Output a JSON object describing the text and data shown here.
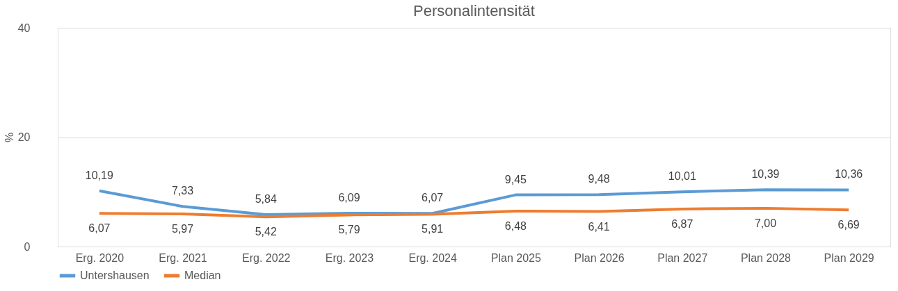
{
  "chart_data": {
    "type": "line",
    "title": "Personalintensität",
    "ylabel": "%",
    "categories": [
      "Erg. 2020",
      "Erg. 2021",
      "Erg. 2022",
      "Erg. 2023",
      "Erg. 2024",
      "Plan 2025",
      "Plan 2026",
      "Plan 2027",
      "Plan 2028",
      "Plan 2029"
    ],
    "series": [
      {
        "name": "Untershausen",
        "color": "#5b9bd5",
        "values": [
          10.19,
          7.33,
          5.84,
          6.09,
          6.07,
          9.45,
          9.48,
          10.01,
          10.39,
          10.36
        ],
        "value_labels": [
          "10,19",
          "7,33",
          "5,84",
          "6,09",
          "6,07",
          "9,45",
          "9,48",
          "10,01",
          "10,39",
          "10,36"
        ]
      },
      {
        "name": "Median",
        "color": "#ed7d31",
        "values": [
          6.07,
          5.97,
          5.42,
          5.79,
          5.91,
          6.48,
          6.41,
          6.87,
          7.0,
          6.69
        ],
        "value_labels": [
          "6,07",
          "5,97",
          "5,42",
          "5,79",
          "5,91",
          "6,48",
          "6,41",
          "6,87",
          "7,00",
          "6,69"
        ]
      }
    ],
    "ylim": [
      0,
      40
    ],
    "yticks": [
      0,
      20,
      40
    ],
    "grid": "y",
    "legend": "bottom"
  }
}
